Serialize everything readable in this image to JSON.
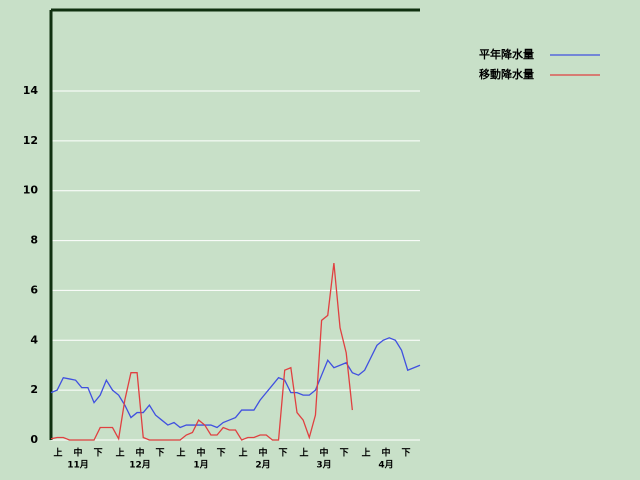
{
  "chart_data": {
    "type": "line",
    "x": [
      0,
      3,
      6,
      9,
      12,
      15,
      18,
      21,
      24,
      27,
      30,
      33,
      36,
      39,
      42,
      45,
      48,
      51,
      54,
      57,
      60,
      63,
      66,
      69,
      72,
      75,
      78,
      81,
      84,
      87,
      90,
      93,
      96,
      99,
      102,
      105,
      108,
      111,
      114,
      117,
      120,
      123,
      126,
      129,
      132,
      135,
      138,
      141,
      144,
      147,
      150,
      153,
      156,
      159,
      162,
      165,
      168,
      171,
      174,
      177,
      180
    ],
    "series": [
      {
        "name": "平年降水量",
        "color": "#4050e0",
        "values": [
          1.9,
          2.0,
          2.5,
          2.45,
          2.4,
          2.1,
          2.1,
          1.5,
          1.8,
          2.4,
          2.0,
          1.8,
          1.4,
          0.9,
          1.1,
          1.1,
          1.4,
          1.0,
          0.8,
          0.6,
          0.7,
          0.5,
          0.6,
          0.6,
          0.6,
          0.6,
          0.6,
          0.5,
          0.7,
          0.8,
          0.9,
          1.2,
          1.2,
          1.2,
          1.6,
          1.9,
          2.2,
          2.5,
          2.4,
          1.9,
          1.9,
          1.8,
          1.8,
          2.0,
          2.6,
          3.2,
          2.9,
          3.0,
          3.1,
          2.7,
          2.6,
          2.8,
          3.3,
          3.8,
          4.0,
          4.1,
          4.0,
          3.6,
          2.8,
          2.9,
          3.0
        ]
      },
      {
        "name": "移動降水量",
        "color": "#e04040",
        "values": [
          0.05,
          0.1,
          0.1,
          0,
          0,
          0,
          0,
          0,
          0.5,
          0.5,
          0.5,
          0.05,
          1.6,
          2.7,
          2.7,
          0.1,
          0,
          0,
          0,
          0,
          0,
          0,
          0.2,
          0.3,
          0.8,
          0.6,
          0.2,
          0.2,
          0.5,
          0.4,
          0.4,
          0,
          0.1,
          0.1,
          0.2,
          0.2,
          0,
          0,
          2.8,
          2.9,
          1.1,
          0.8,
          0.1,
          1.0,
          4.8,
          5.0,
          7.1,
          4.5,
          3.5,
          1.2,
          null,
          null,
          null,
          null,
          null,
          null,
          null,
          null,
          null,
          null,
          null
        ]
      }
    ],
    "xlim": [
      0,
      180
    ],
    "xticks": [
      {
        "value": 3.4,
        "label": "上"
      },
      {
        "value": 13.2,
        "label": "中"
      },
      {
        "value": 23,
        "label": "下"
      },
      {
        "value": 33.7,
        "label": "上"
      },
      {
        "value": 43.4,
        "label": "中"
      },
      {
        "value": 53.2,
        "label": "下"
      },
      {
        "value": 63.4,
        "label": "上"
      },
      {
        "value": 73.2,
        "label": "中"
      },
      {
        "value": 83,
        "label": "下"
      },
      {
        "value": 93.7,
        "label": "上"
      },
      {
        "value": 103.4,
        "label": "中"
      },
      {
        "value": 113.2,
        "label": "下"
      },
      {
        "value": 123.4,
        "label": "上"
      },
      {
        "value": 133.2,
        "label": "中"
      },
      {
        "value": 143,
        "label": "下"
      },
      {
        "value": 153.7,
        "label": "上"
      },
      {
        "value": 163.4,
        "label": "中"
      },
      {
        "value": 173.2,
        "label": "下"
      }
    ],
    "month_labels": [
      {
        "value": 13.2,
        "label": "11月"
      },
      {
        "value": 43.4,
        "label": "12月"
      },
      {
        "value": 73.2,
        "label": "1月"
      },
      {
        "value": 103.4,
        "label": "2月"
      },
      {
        "value": 133.2,
        "label": "3月"
      },
      {
        "value": 163.4,
        "label": "4月"
      }
    ],
    "ylim": [
      0,
      17.25
    ],
    "yticks": [
      0,
      2,
      4,
      6,
      8,
      10,
      12,
      14
    ],
    "grid": true
  }
}
